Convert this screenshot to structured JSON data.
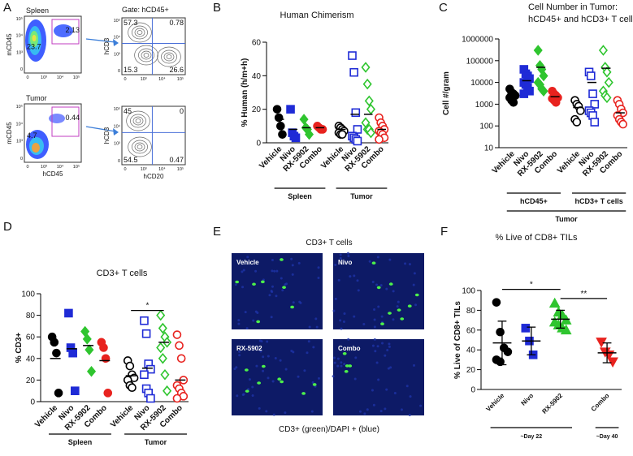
{
  "panel_a": {
    "panel": "A",
    "ticks": [
      "0",
      "10³",
      "10⁴",
      "10⁵"
    ],
    "rows": [
      {
        "label": "Spleen",
        "gate": "Gate: hCD45+",
        "gate_plot": {
          "ylabel": "mCD45",
          "gate_values": [
            "23.7",
            "2.13"
          ]
        },
        "quadrant_plot": {
          "ylabel": "hCD3",
          "values": [
            "57.3",
            "0.78",
            "15.3",
            "26.6"
          ]
        }
      },
      {
        "label": "Tumor",
        "gate_plot": {
          "ylabel": "mCD45",
          "xlabel": "hCD45",
          "gate_values": [
            "4.7",
            "0.44"
          ]
        },
        "quadrant_plot": {
          "ylabel": "hCD3",
          "xlabel": "hCD20",
          "values": [
            "45",
            "0",
            "54.5",
            "0.47"
          ]
        }
      }
    ]
  },
  "panel_e": {
    "panel": "E",
    "title": "CD3+ T cells",
    "images": [
      "Vehicle",
      "Nivo",
      "RX-5902",
      "Combo"
    ],
    "caption": "CD3+ (green)/DAPI + (blue)"
  },
  "chart_data": [
    {
      "panel": "B",
      "type": "dot",
      "title": "Human Chimerism",
      "ylabel": "% Human (h/m+h)",
      "ylim": [
        0,
        60
      ],
      "yticks": [
        0,
        20,
        40,
        60
      ],
      "sections": [
        {
          "label": "Spleen",
          "groups": [
            {
              "label": "Vehicle",
              "color": "#000000",
              "marker": "circle",
              "filled": true,
              "values": [
                20,
                15,
                10,
                5
              ],
              "mean": 14
            },
            {
              "label": "Nivo",
              "color": "#1f2bd6",
              "marker": "square",
              "filled": true,
              "values": [
                20,
                6,
                4,
                3
              ],
              "mean": 8
            },
            {
              "label": "RX-5902",
              "color": "#2fc52f",
              "marker": "diamond",
              "filled": true,
              "values": [
                14,
                9,
                8,
                5
              ],
              "mean": 9
            },
            {
              "label": "Combo",
              "color": "#e8231f",
              "marker": "circle",
              "filled": true,
              "values": [
                10,
                9,
                8,
                8
              ],
              "mean": 9
            }
          ]
        },
        {
          "label": "Tumor",
          "groups": [
            {
              "label": "Vehicle",
              "color": "#000000",
              "marker": "circle",
              "filled": false,
              "values": [
                10,
                9,
                8,
                7,
                6,
                5,
                5
              ],
              "mean": 8
            },
            {
              "label": "Nivo",
              "color": "#1f2bd6",
              "marker": "square",
              "filled": false,
              "values": [
                52,
                42,
                18,
                8,
                4,
                3,
                2,
                1
              ],
              "mean": 17
            },
            {
              "label": "RX-5902",
              "color": "#2fc52f",
              "marker": "diamond",
              "filled": false,
              "values": [
                45,
                35,
                25,
                20,
                12,
                8,
                8,
                6
              ],
              "mean": 17
            },
            {
              "label": "Combo",
              "color": "#e8231f",
              "marker": "circle",
              "filled": false,
              "values": [
                15,
                12,
                10,
                8,
                7,
                6,
                5,
                3,
                2
              ],
              "mean": 8
            }
          ]
        }
      ]
    },
    {
      "panel": "C",
      "type": "dot",
      "title": [
        "Cell Number in Tumor:",
        "hCD45+ and hCD3+ T cells"
      ],
      "ylabel": "Cell #/gram",
      "log": true,
      "ylim": [
        10,
        1000000
      ],
      "yticks": [
        10,
        100,
        1000,
        10000,
        100000,
        1000000
      ],
      "super_label": "Tumor",
      "sections": [
        {
          "label": "hCD45+",
          "groups": [
            {
              "label": "Vehicle",
              "color": "#000000",
              "marker": "circle",
              "filled": true,
              "values": [
                5000,
                3500,
                3000,
                2500,
                2000,
                1500,
                1200
              ],
              "mean": 2800
            },
            {
              "label": "Nivo",
              "color": "#1f2bd6",
              "marker": "square",
              "filled": true,
              "values": [
                40000,
                25000,
                20000,
                15000,
                10000,
                8000,
                6000,
                4000,
                3000
              ],
              "mean": 12000
            },
            {
              "label": "RX-5902",
              "color": "#2fc52f",
              "marker": "diamond",
              "filled": true,
              "values": [
                300000,
                60000,
                40000,
                20000,
                10000,
                8000,
                5000,
                4000
              ],
              "mean": 50000
            },
            {
              "label": "Combo",
              "color": "#e8231f",
              "marker": "circle",
              "filled": true,
              "values": [
                4000,
                3000,
                2500,
                2000,
                1800,
                1500,
                1200
              ],
              "mean": 2200
            }
          ]
        },
        {
          "label": "hCD3+ T cells",
          "groups": [
            {
              "label": "Vehicle",
              "color": "#000000",
              "marker": "circle",
              "filled": false,
              "values": [
                1500,
                1000,
                800,
                500,
                200,
                150
              ],
              "mean": 700
            },
            {
              "label": "Nivo",
              "color": "#1f2bd6",
              "marker": "square",
              "filled": false,
              "values": [
                30000,
                20000,
                3000,
                1000,
                500,
                400,
                300,
                150
              ],
              "mean": 10000
            },
            {
              "label": "RX-5902",
              "color": "#2fc52f",
              "marker": "diamond",
              "filled": false,
              "values": [
                300000,
                50000,
                30000,
                10000,
                4000,
                2500,
                2000
              ],
              "mean": 45000
            },
            {
              "label": "Combo",
              "color": "#e8231f",
              "marker": "circle",
              "filled": false,
              "values": [
                1500,
                1000,
                600,
                400,
                300,
                200,
                150,
                120
              ],
              "mean": 400
            }
          ]
        }
      ]
    },
    {
      "panel": "D",
      "type": "dot",
      "title": "CD3+ T cells",
      "ylabel": "% CD3+",
      "ylim": [
        0,
        100
      ],
      "yticks": [
        0,
        20,
        40,
        60,
        80,
        100
      ],
      "sections": [
        {
          "label": "Spleen",
          "groups": [
            {
              "label": "Vehicle",
              "color": "#000000",
              "marker": "circle",
              "filled": true,
              "values": [
                60,
                55,
                45,
                8
              ],
              "mean": 40
            },
            {
              "label": "Nivo",
              "color": "#1f2bd6",
              "marker": "square",
              "filled": true,
              "values": [
                82,
                50,
                45,
                10
              ],
              "mean": 49
            },
            {
              "label": "RX-5902",
              "color": "#2fc52f",
              "marker": "diamond",
              "filled": true,
              "values": [
                65,
                58,
                48,
                28
              ],
              "mean": 52
            },
            {
              "label": "Combo",
              "color": "#e8231f",
              "marker": "circle",
              "filled": true,
              "values": [
                55,
                50,
                40,
                8
              ],
              "mean": 38
            }
          ]
        },
        {
          "label": "Tumor",
          "groups": [
            {
              "label": "Vehicle",
              "color": "#000000",
              "marker": "circle",
              "filled": false,
              "values": [
                38,
                33,
                25,
                22,
                20,
                15,
                13
              ],
              "mean": 24
            },
            {
              "label": "Nivo",
              "color": "#1f2bd6",
              "marker": "square",
              "filled": false,
              "values": [
                75,
                63,
                35,
                30,
                25,
                12,
                8,
                3
              ],
              "mean": 31
            },
            {
              "label": "RX-5902",
              "color": "#2fc52f",
              "marker": "diamond",
              "filled": false,
              "values": [
                80,
                68,
                60,
                55,
                50,
                40,
                25,
                10
              ],
              "mean": 55
            },
            {
              "label": "Combo",
              "color": "#e8231f",
              "marker": "circle",
              "filled": false,
              "values": [
                62,
                52,
                40,
                20,
                15,
                12,
                8,
                5,
                3
              ],
              "mean": 20
            }
          ]
        }
      ],
      "brackets": [
        {
          "text": "*",
          "from": {
            "section": "Tumor",
            "group": "Vehicle"
          },
          "to": {
            "section": "Tumor",
            "group": "RX-5902"
          }
        }
      ]
    },
    {
      "panel": "F",
      "type": "dot",
      "title": "% Live of CD8+ TILs",
      "ylabel": "% Live of CD8+ TILs",
      "ylim": [
        0,
        100
      ],
      "yticks": [
        0,
        20,
        40,
        60,
        80,
        100
      ],
      "sections": [
        {
          "label": "~Day 22",
          "groups": [
            {
              "label": "Vehicle",
              "color": "#000000",
              "marker": "circle",
              "filled": true,
              "values": [
                88,
                58,
                42,
                38,
                30,
                28
              ],
              "mean": 47,
              "sd": 22
            },
            {
              "label": "Nivo",
              "color": "#1f2bd6",
              "marker": "square",
              "filled": true,
              "values": [
                62,
                49,
                35
              ],
              "mean": 49,
              "sd": 14
            },
            {
              "label": "RX-5902",
              "color": "#2fc52f",
              "marker": "triangle-up",
              "filled": true,
              "values": [
                87,
                78,
                75,
                70,
                68,
                65,
                62,
                60
              ],
              "mean": 71,
              "sd": 9
            }
          ]
        },
        {
          "label": "~Day 40",
          "groups": [
            {
              "label": "Combo",
              "color": "#e8231f",
              "marker": "triangle-down",
              "filled": true,
              "values": [
                48,
                38,
                35,
                28
              ],
              "mean": 37,
              "sd": 10
            }
          ]
        }
      ],
      "brackets": [
        {
          "text": "*",
          "from": {
            "section": "~Day 22",
            "group": "Vehicle"
          },
          "to": {
            "section": "~Day 22",
            "group": "RX-5902"
          }
        },
        {
          "text": "**",
          "from": {
            "section": "~Day 22",
            "group": "RX-5902"
          },
          "to": {
            "section": "~Day 40",
            "group": "Combo"
          }
        }
      ]
    }
  ]
}
